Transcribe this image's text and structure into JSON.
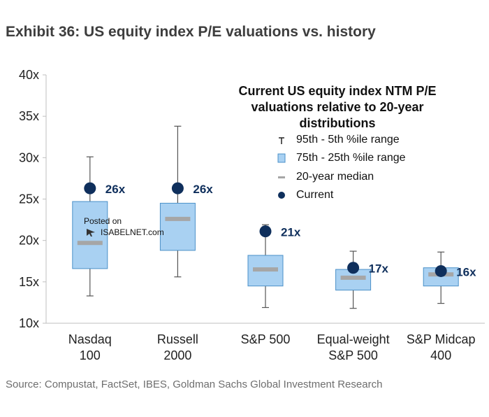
{
  "title": "Exhibit 36: US equity index P/E valuations vs. history",
  "source": "Source: Compustat, FactSet, IBES, Goldman Sachs Global Investment Research",
  "watermark": {
    "line1": "Posted on",
    "line2": "ISABELNET.com"
  },
  "colors": {
    "box_fill": "#a9d1f2",
    "box_stroke": "#4a90c8",
    "median": "#a6a6a6",
    "current_dot": "#0f2f5c",
    "current_label": "#0f2f5c",
    "whisker": "#555555",
    "axis_text": "#222222"
  },
  "chart_data": {
    "type": "box",
    "legend": {
      "title": [
        "Current US equity index NTM P/E",
        "valuations relative to 20-year",
        "distributions"
      ],
      "items": [
        {
          "symbol": "T",
          "label": "95th - 5th %ile range"
        },
        {
          "symbol": "box",
          "label": "75th - 25th %ile range"
        },
        {
          "symbol": "median",
          "label": "20-year median"
        },
        {
          "symbol": "dot",
          "label": "Current"
        }
      ],
      "placement": "top-right"
    },
    "ylim": [
      10,
      40
    ],
    "yticks": [
      {
        "value": 10,
        "label": "10x"
      },
      {
        "value": 15,
        "label": "15x"
      },
      {
        "value": 20,
        "label": "20x"
      },
      {
        "value": 25,
        "label": "25x"
      },
      {
        "value": 30,
        "label": "30x"
      },
      {
        "value": 35,
        "label": "35x"
      },
      {
        "value": 40,
        "label": "40x"
      }
    ],
    "categories": [
      {
        "lines": [
          "Nasdaq",
          "100"
        ],
        "p5": 13.3,
        "p25": 16.6,
        "median": 19.7,
        "p75": 24.7,
        "p95": 30.1,
        "current": 26.3,
        "current_label": "26x"
      },
      {
        "lines": [
          "Russell",
          "2000"
        ],
        "p5": 15.6,
        "p25": 18.8,
        "median": 22.6,
        "p75": 24.5,
        "p95": 33.8,
        "current": 26.3,
        "current_label": "26x"
      },
      {
        "lines": [
          "S&P 500",
          ""
        ],
        "p5": 11.9,
        "p25": 14.5,
        "median": 16.5,
        "p75": 18.2,
        "p95": 21.9,
        "current": 21.1,
        "current_label": "21x"
      },
      {
        "lines": [
          "Equal-weight",
          "S&P 500"
        ],
        "p5": 11.8,
        "p25": 14.0,
        "median": 15.5,
        "p75": 16.5,
        "p95": 18.7,
        "current": 16.7,
        "current_label": "17x"
      },
      {
        "lines": [
          "S&P Midcap",
          "400"
        ],
        "p5": 12.4,
        "p25": 14.5,
        "median": 15.9,
        "p75": 16.7,
        "p95": 18.6,
        "current": 16.3,
        "current_label": "16x"
      }
    ]
  }
}
